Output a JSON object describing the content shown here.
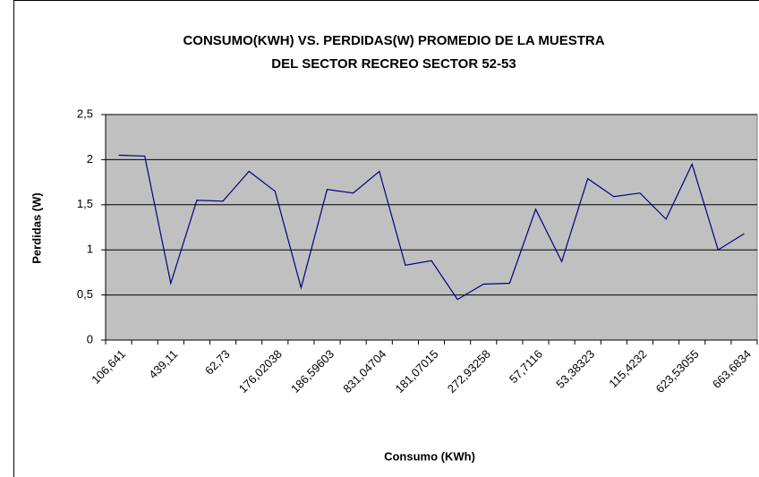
{
  "chart_data": {
    "type": "line",
    "title": [
      "CONSUMO(KWH) VS. PERDIDAS(W) PROMEDIO DE LA MUESTRA",
      "DEL SECTOR RECREO SECTOR 52-53"
    ],
    "x_label": "Consumo (KWh)",
    "y_label": "Perdidas (W)",
    "categories": [
      "106,641",
      null,
      "439,11",
      null,
      "62,73",
      null,
      "176,02038",
      null,
      "186,59603",
      null,
      "831,04704",
      null,
      "181,07015",
      null,
      "272,93258",
      null,
      "57,7116",
      null,
      "53,38323",
      null,
      "115,4232",
      null,
      "623,53055",
      null,
      "663,6834"
    ],
    "series": [
      {
        "name": "Perdidas (W)",
        "color": "#000080",
        "values": [
          2.05,
          2.04,
          0.63,
          1.55,
          1.54,
          1.87,
          1.65,
          0.58,
          1.67,
          1.63,
          1.87,
          0.83,
          0.88,
          0.45,
          0.62,
          0.63,
          1.45,
          0.87,
          1.79,
          1.59,
          1.63,
          1.34,
          1.95,
          1.0,
          1.18
        ]
      }
    ],
    "ylim": [
      0,
      2.5
    ],
    "yticks": [
      0,
      {
        "value": 0.5,
        "label": "0,5"
      },
      1,
      {
        "value": 1.5,
        "label": "1,5"
      },
      2,
      {
        "value": 2.5,
        "label": "2,5"
      }
    ],
    "grid": true,
    "plot_background": "#c0c0c0"
  }
}
